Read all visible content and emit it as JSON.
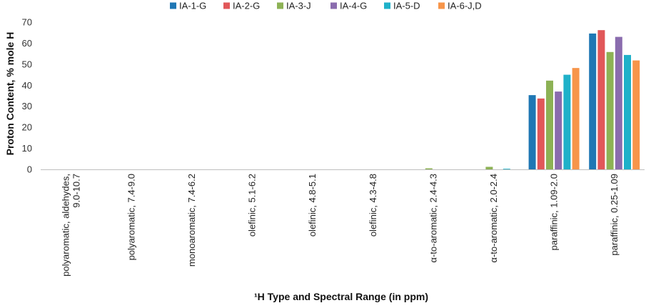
{
  "chart_data": {
    "type": "bar",
    "title": "",
    "xlabel": "¹H Type and Spectral Range (in ppm)",
    "ylabel": "Proton Content, % mole H",
    "ylim": [
      0,
      70
    ],
    "yticks": [
      0,
      10,
      20,
      30,
      40,
      50,
      60,
      70
    ],
    "grid": false,
    "legend_position": "top",
    "categories": [
      [
        "polyaromatic, aldehydes,",
        "9.0-10.7"
      ],
      [
        "polyaromatic, 7.4-9.0"
      ],
      [
        "monoaromatic, 7.4-6.2"
      ],
      [
        "olefinic, 5.1-6.2"
      ],
      [
        "olefinic, 4.8-5.1"
      ],
      [
        "olefinic, 4.3-4.8"
      ],
      [
        "α-to-aromatic, 2.4-4.3"
      ],
      [
        "α-to-aromatic, 2.0-2.4"
      ],
      [
        "paraffinic, 1.09-2.0"
      ],
      [
        "paraffinic, 0.25-1.09"
      ]
    ],
    "series": [
      {
        "name": "IA-1-G",
        "color": "#1f77b4",
        "values": [
          0,
          0,
          0,
          0,
          0,
          0,
          0,
          0,
          35.3,
          64.6
        ]
      },
      {
        "name": "IA-2-G",
        "color": "#e15759",
        "values": [
          0,
          0,
          0,
          0,
          0,
          0,
          0,
          0,
          33.7,
          66.2
        ]
      },
      {
        "name": "IA-3-J",
        "color": "#8db255",
        "values": [
          0,
          0,
          0,
          0,
          0,
          0,
          0.5,
          1.2,
          42.2,
          55.8
        ]
      },
      {
        "name": "IA-4-G",
        "color": "#8a6cae",
        "values": [
          0,
          0,
          0,
          0,
          0,
          0,
          0,
          0,
          37.0,
          63.0
        ]
      },
      {
        "name": "IA-5-D",
        "color": "#1fb1c9",
        "values": [
          0,
          0,
          0,
          0,
          0,
          0,
          0,
          0.3,
          45.0,
          54.4
        ]
      },
      {
        "name": "IA-6-J,D",
        "color": "#f7954a",
        "values": [
          0,
          0,
          0,
          0,
          0,
          0,
          0,
          0,
          48.2,
          51.8
        ]
      }
    ]
  }
}
